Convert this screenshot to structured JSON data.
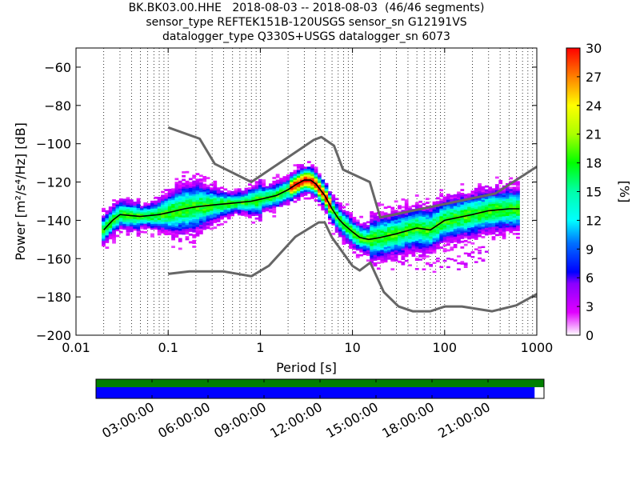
{
  "title": {
    "line1": "BK.BK03.00.HHE   2018-08-03 -- 2018-08-03  (46/46 segments)",
    "line2": "sensor_type REFTEK151B-120USGS sensor_sn G12191VS",
    "line3": "datalogger_type Q330S+USGS datalogger_sn 6073"
  },
  "colors": {
    "model_line": "#666666",
    "mean_line": "#000000",
    "coverage_top": "#008000",
    "coverage_bottom": "#0000ff"
  },
  "chart_data": {
    "type": "heatmap",
    "subtype": "probabilistic power spectral density",
    "xlabel": "Period [s]",
    "ylabel": "Power [m²/s⁴/Hz] [dB]",
    "xscale": "log",
    "xlim": [
      0.01,
      1000
    ],
    "ylim": [
      -200,
      -50
    ],
    "x_ticks": [
      0.01,
      0.1,
      1,
      10,
      100,
      1000
    ],
    "x_tick_labels": [
      "0.01",
      "0.1",
      "1",
      "10",
      "100",
      "1000"
    ],
    "y_ticks": [
      -200,
      -180,
      -160,
      -140,
      -120,
      -100,
      -80,
      -60
    ],
    "y_tick_labels": [
      "−200",
      "−180",
      "−160",
      "−140",
      "−120",
      "−100",
      "−80",
      "−60"
    ],
    "grid": "vertical dotted",
    "colorbar": {
      "label": "[%]",
      "range": [
        0,
        30
      ],
      "ticks": [
        "0",
        "3",
        "6",
        "9",
        "12",
        "15",
        "18",
        "21",
        "24",
        "27",
        "30"
      ]
    },
    "high_noise_model": {
      "x": [
        0.1,
        0.22,
        0.32,
        0.8,
        3.8,
        4.6,
        6.3,
        7.9,
        15.4,
        20,
        354.8,
        1000
      ],
      "y": [
        -91.5,
        -97.4,
        -110.5,
        -120,
        -98,
        -96.5,
        -101,
        -113.5,
        -120,
        -138.5,
        -126,
        -112
      ]
    },
    "low_noise_model": {
      "x": [
        0.1,
        0.17,
        0.4,
        0.8,
        1.24,
        2.4,
        4.3,
        5,
        6,
        10,
        12,
        15.6,
        21.9,
        31.6,
        45,
        70,
        101,
        154,
        328,
        600,
        1000
      ],
      "y": [
        -168,
        -166.7,
        -166.7,
        -169.2,
        -163.7,
        -148.6,
        -141.1,
        -141.1,
        -149,
        -163.8,
        -166.2,
        -162.1,
        -177.5,
        -185,
        -187.5,
        -187.5,
        -185,
        -185,
        -187.5,
        -184.4,
        -178.5
      ]
    },
    "mean": {
      "x": [
        0.02,
        0.025,
        0.03,
        0.05,
        0.08,
        0.1,
        0.15,
        0.2,
        0.3,
        0.5,
        0.8,
        1,
        1.5,
        2,
        2.5,
        3,
        3.5,
        4,
        5,
        6,
        7,
        8,
        10,
        12,
        15,
        20,
        30,
        50,
        70,
        100,
        200,
        300,
        500,
        650
      ],
      "y": [
        -145,
        -140,
        -137,
        -138,
        -137,
        -136,
        -134,
        -133,
        -132,
        -131,
        -130,
        -129,
        -127,
        -124,
        -121,
        -119,
        -119,
        -121,
        -127,
        -134,
        -139,
        -142,
        -146,
        -149,
        -150,
        -149,
        -147,
        -144,
        -145,
        -140,
        -137,
        -135,
        -134,
        -134
      ]
    },
    "coverage_bar": {
      "x_tick_labels": [
        "03:00:00",
        "06:00:00",
        "09:00:00",
        "12:00:00",
        "15:00:00",
        "18:00:00",
        "21:00:00"
      ],
      "data_fraction": 0.979
    }
  }
}
